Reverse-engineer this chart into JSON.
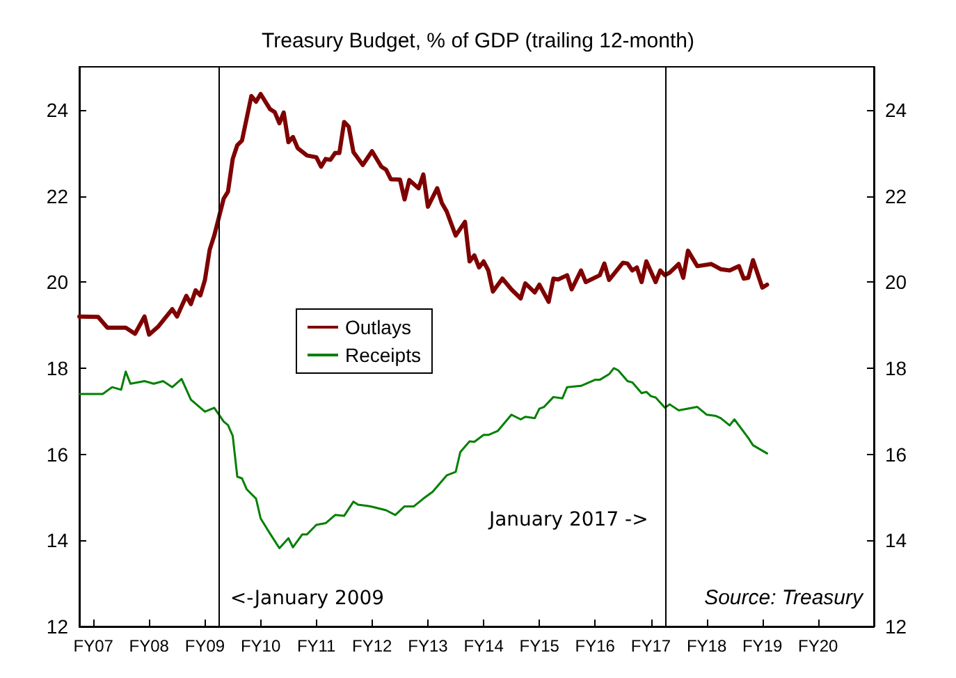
{
  "chart_data": {
    "type": "line",
    "title": "Treasury Budget, % of GDP (trailing 12-month)",
    "xlim": [
      "2006-07",
      "2020-10"
    ],
    "xticks": [
      {
        "value": "2006-10",
        "label": "FY07"
      },
      {
        "value": "2007-10",
        "label": "FY08"
      },
      {
        "value": "2008-10",
        "label": "FY09"
      },
      {
        "value": "2009-10",
        "label": "FY10"
      },
      {
        "value": "2010-10",
        "label": "FY11"
      },
      {
        "value": "2011-10",
        "label": "FY12"
      },
      {
        "value": "2012-10",
        "label": "FY13"
      },
      {
        "value": "2013-10",
        "label": "FY14"
      },
      {
        "value": "2014-10",
        "label": "FY15"
      },
      {
        "value": "2015-10",
        "label": "FY16"
      },
      {
        "value": "2016-10",
        "label": "FY17"
      },
      {
        "value": "2017-10",
        "label": "FY18"
      },
      {
        "value": "2018-10",
        "label": "FY19"
      },
      {
        "value": "2019-10",
        "label": "FY20"
      }
    ],
    "ylim": [
      12,
      25
    ],
    "yticks": [
      12,
      14,
      16,
      18,
      20,
      22,
      24
    ],
    "y2lim": [
      12,
      25
    ],
    "y2ticks": [
      12,
      14,
      16,
      18,
      20,
      22,
      24
    ],
    "series": [
      {
        "name": "Outlays",
        "color": "#7f0000",
        "x": [
          "2006-07",
          "2006-11",
          "2007-01",
          "2007-05",
          "2007-07",
          "2007-09",
          "2007-10",
          "2007-12",
          "2008-03",
          "2008-04",
          "2008-06",
          "2008-07",
          "2008-08",
          "2008-09",
          "2008-10",
          "2008-11",
          "2008-12",
          "2009-02",
          "2009-03",
          "2009-04",
          "2009-05",
          "2009-06",
          "2009-08",
          "2009-09",
          "2009-10",
          "2009-12",
          "2010-01",
          "2010-02",
          "2010-03",
          "2010-04",
          "2010-05",
          "2010-06",
          "2010-08",
          "2010-10",
          "2010-11",
          "2010-12",
          "2011-01",
          "2011-02",
          "2011-03",
          "2011-04",
          "2011-05",
          "2011-06",
          "2011-08",
          "2011-10",
          "2011-12",
          "2012-01",
          "2012-02",
          "2012-04",
          "2012-05",
          "2012-06",
          "2012-08",
          "2012-09",
          "2012-10",
          "2012-12",
          "2013-01",
          "2013-02",
          "2013-04",
          "2013-06",
          "2013-07",
          "2013-08",
          "2013-09",
          "2013-10",
          "2013-11",
          "2013-12",
          "2014-02",
          "2014-04",
          "2014-06",
          "2014-07",
          "2014-09",
          "2014-10",
          "2014-12",
          "2015-01",
          "2015-02",
          "2015-04",
          "2015-05",
          "2015-07",
          "2015-08",
          "2015-11",
          "2015-12",
          "2016-01",
          "2016-04",
          "2016-05",
          "2016-06",
          "2016-07",
          "2016-08",
          "2016-09",
          "2016-11",
          "2016-12",
          "2017-01",
          "2017-02",
          "2017-04",
          "2017-05",
          "2017-06",
          "2017-08",
          "2017-11",
          "2018-01",
          "2018-03",
          "2018-05",
          "2018-06",
          "2018-07",
          "2018-08",
          "2018-10",
          "2018-11"
        ],
        "values": [
          19.2,
          19.19,
          18.94,
          18.94,
          18.8,
          19.2,
          18.78,
          18.97,
          19.37,
          19.2,
          19.68,
          19.49,
          19.81,
          19.69,
          20.05,
          20.75,
          21.08,
          21.94,
          22.1,
          22.86,
          23.18,
          23.29,
          24.32,
          24.19,
          24.37,
          24.02,
          23.95,
          23.69,
          23.94,
          23.25,
          23.37,
          23.11,
          22.94,
          22.9,
          22.68,
          22.86,
          22.84,
          23.0,
          23.0,
          23.72,
          23.61,
          23.02,
          22.72,
          23.04,
          22.68,
          22.61,
          22.39,
          22.38,
          21.92,
          22.37,
          22.18,
          22.5,
          21.75,
          22.18,
          21.83,
          21.64,
          21.08,
          21.4,
          20.48,
          20.62,
          20.34,
          20.48,
          20.27,
          19.78,
          20.08,
          19.83,
          19.62,
          19.97,
          19.76,
          19.94,
          19.54,
          20.08,
          20.06,
          20.16,
          19.83,
          20.27,
          20.0,
          20.16,
          20.43,
          20.05,
          20.45,
          20.43,
          20.27,
          20.34,
          20.0,
          20.48,
          20.0,
          20.27,
          20.16,
          20.22,
          20.42,
          20.1,
          20.73,
          20.37,
          20.42,
          20.3,
          20.27,
          20.37,
          20.08,
          20.1,
          20.51,
          19.87,
          19.94
        ]
      },
      {
        "name": "Receipts",
        "color": "#008000",
        "x": [
          "2006-07",
          "2006-11",
          "2006-12",
          "2007-02",
          "2007-04",
          "2007-05",
          "2007-06",
          "2007-09",
          "2007-11",
          "2008-01",
          "2008-03",
          "2008-05",
          "2008-07",
          "2008-10",
          "2008-12",
          "2009-02",
          "2009-03",
          "2009-04",
          "2009-05",
          "2009-06",
          "2009-07",
          "2009-09",
          "2009-10",
          "2009-12",
          "2010-02",
          "2010-04",
          "2010-05",
          "2010-07",
          "2010-08",
          "2010-10",
          "2010-12",
          "2011-02",
          "2011-04",
          "2011-06",
          "2011-07",
          "2011-09",
          "2011-10",
          "2012-01",
          "2012-03",
          "2012-05",
          "2012-07",
          "2012-09",
          "2012-11",
          "2013-02",
          "2013-04",
          "2013-05",
          "2013-07",
          "2013-08",
          "2013-10",
          "2013-11",
          "2014-01",
          "2014-04",
          "2014-06",
          "2014-07",
          "2014-09",
          "2014-10",
          "2014-11",
          "2015-01",
          "2015-03",
          "2015-04",
          "2015-07",
          "2015-10",
          "2015-11",
          "2016-01",
          "2016-02",
          "2016-03",
          "2016-05",
          "2016-06",
          "2016-08",
          "2016-09",
          "2016-10",
          "2016-11",
          "2017-01",
          "2017-02",
          "2017-04",
          "2017-06",
          "2017-08",
          "2017-10",
          "2017-12",
          "2018-01",
          "2018-03",
          "2018-04",
          "2018-07",
          "2018-08",
          "2018-11"
        ],
        "values": [
          17.4,
          17.4,
          17.4,
          17.56,
          17.5,
          17.92,
          17.64,
          17.7,
          17.64,
          17.7,
          17.56,
          17.75,
          17.27,
          16.99,
          17.08,
          16.76,
          16.68,
          16.43,
          15.48,
          15.44,
          15.19,
          14.97,
          14.51,
          14.16,
          13.82,
          14.05,
          13.84,
          14.14,
          14.14,
          14.36,
          14.4,
          14.59,
          14.57,
          14.9,
          14.83,
          14.8,
          14.78,
          14.7,
          14.59,
          14.79,
          14.79,
          14.97,
          15.13,
          15.51,
          15.59,
          16.05,
          16.3,
          16.29,
          16.45,
          16.45,
          16.54,
          16.92,
          16.81,
          16.87,
          16.84,
          17.06,
          17.1,
          17.33,
          17.3,
          17.56,
          17.59,
          17.73,
          17.73,
          17.86,
          18.0,
          17.95,
          17.7,
          17.67,
          17.42,
          17.45,
          17.35,
          17.32,
          17.08,
          17.16,
          17.02,
          17.06,
          17.1,
          16.92,
          16.89,
          16.84,
          16.67,
          16.81,
          16.38,
          16.21,
          16.02
        ]
      }
    ],
    "ref_lines": [
      {
        "axis": "x",
        "value": "2009-01",
        "label": "<-January 2009",
        "color": "#000000"
      },
      {
        "axis": "x",
        "value": "2017-01",
        "label": "January 2017 ->",
        "color": "#000000"
      }
    ],
    "annotations": [
      "Source: Treasury"
    ],
    "legend": "center left",
    "grid": false,
    "marker": "none",
    "line_style": "solid"
  }
}
